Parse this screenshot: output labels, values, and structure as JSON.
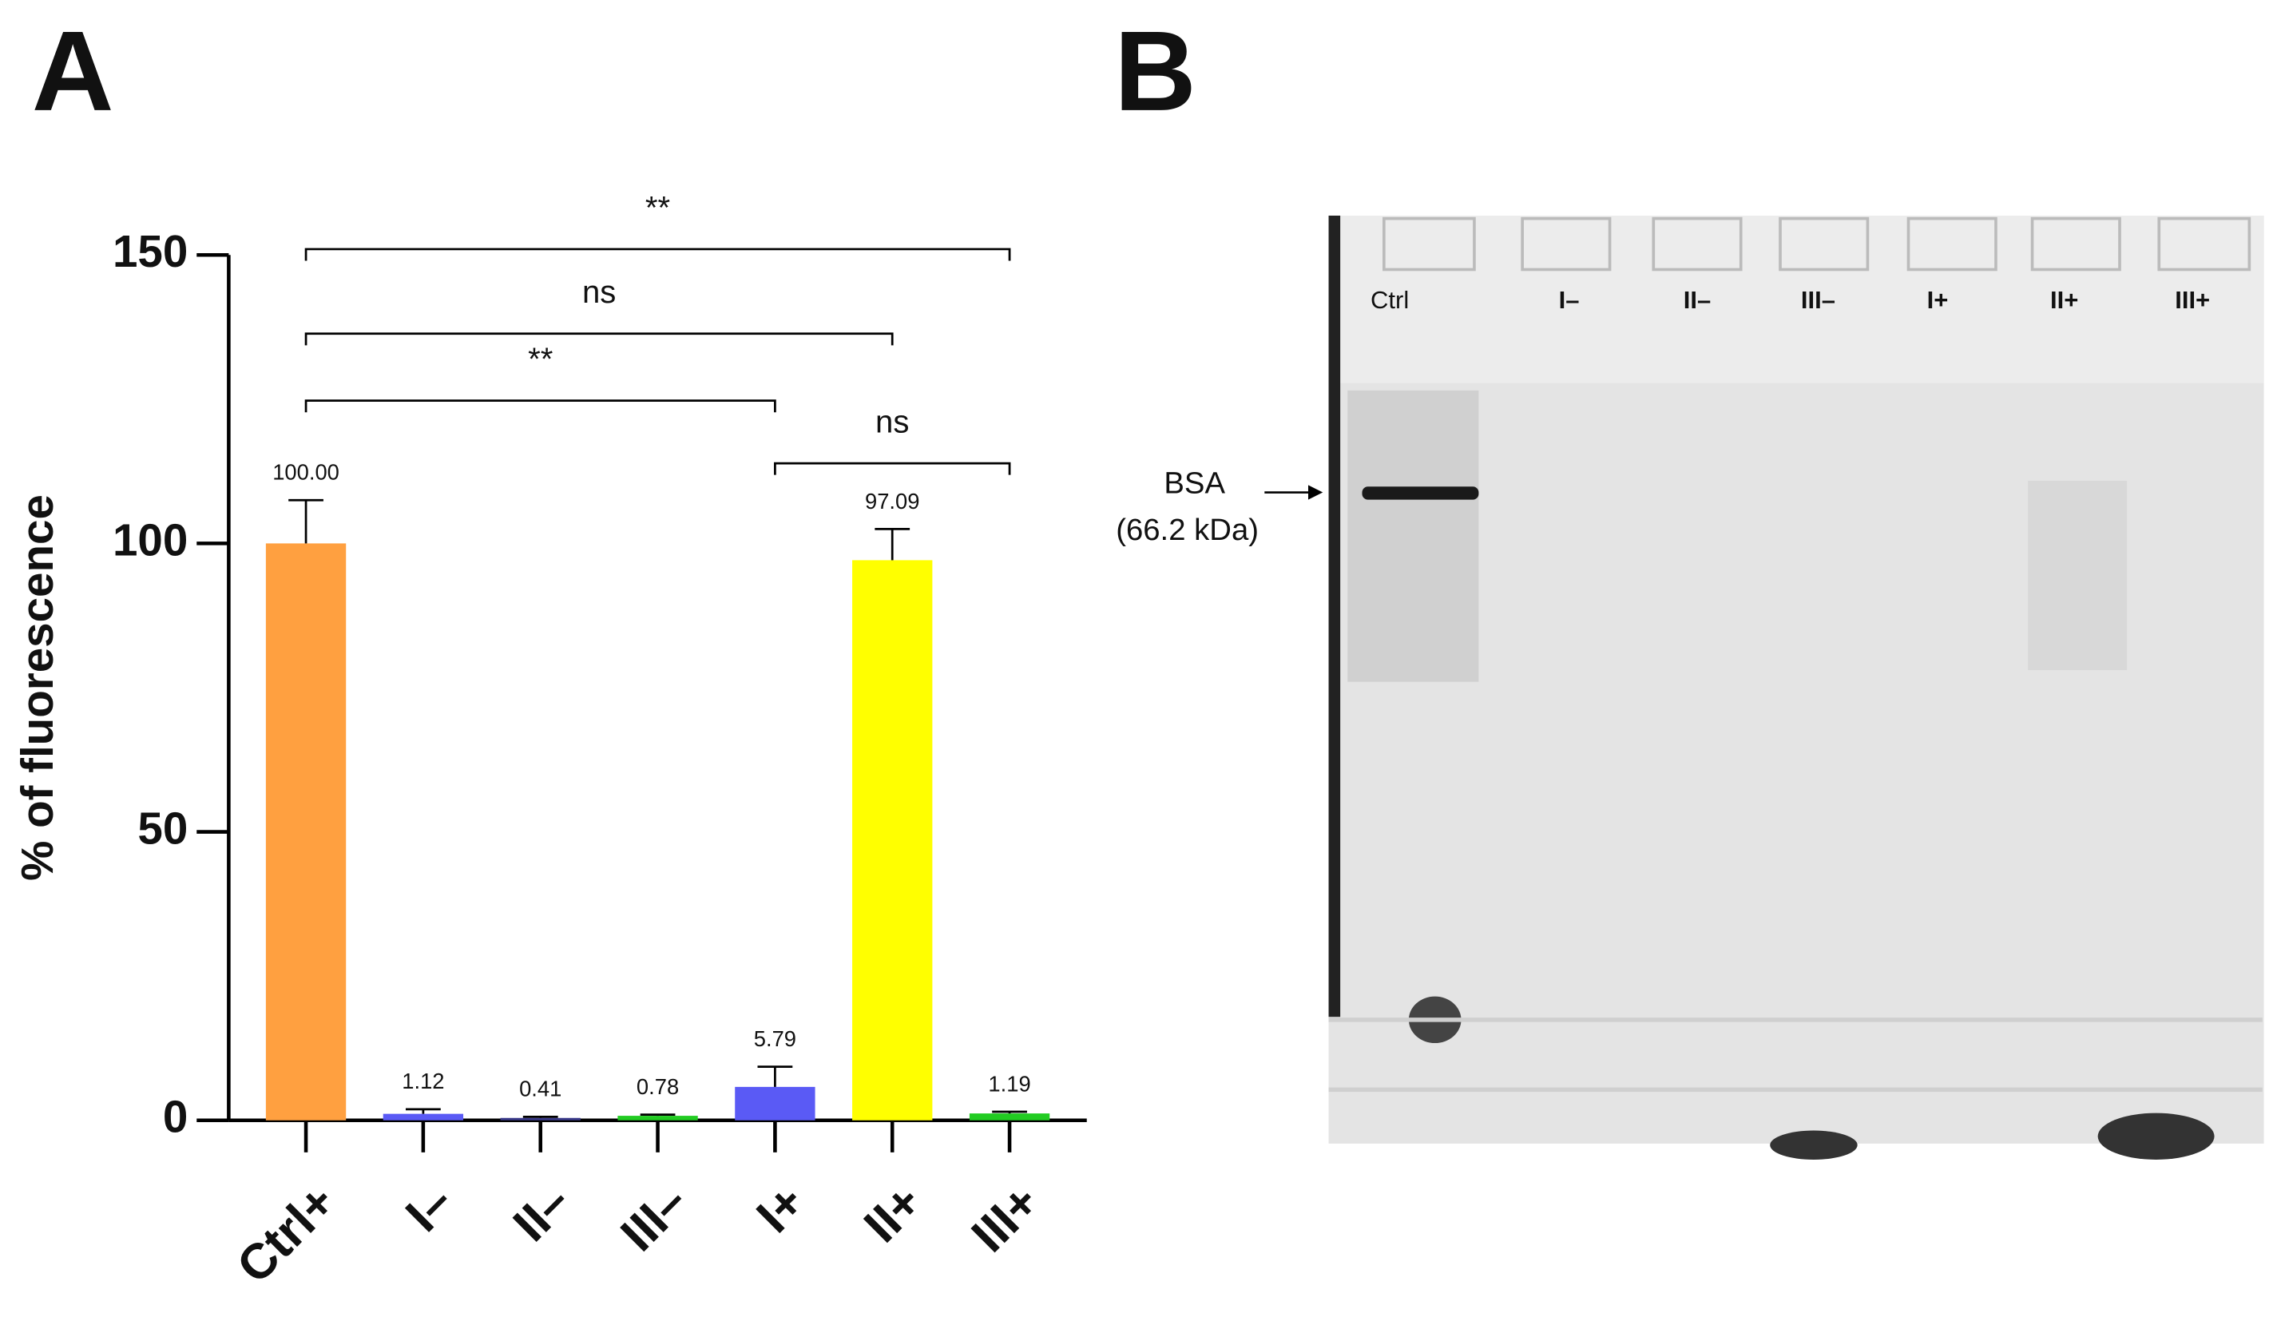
{
  "panels": [
    "A",
    "B"
  ],
  "chart_data": {
    "type": "bar",
    "y_label": "% of fluorescence",
    "categories": [
      "Ctrl+",
      "I–",
      "II–",
      "III–",
      "I+",
      "II+",
      "III+"
    ],
    "values": [
      100.0,
      1.12,
      0.41,
      0.78,
      5.79,
      97.09,
      1.19
    ],
    "value_labels": [
      "100.00",
      "1.12",
      "0.41",
      "0.78",
      "5.79",
      "97.09",
      "1.19"
    ],
    "errors": [
      7.5,
      0.8,
      0.2,
      0.2,
      3.5,
      5.4,
      0.3
    ],
    "colors": [
      "#ffa040",
      "#5a5af5",
      "#3a3a8a",
      "#22cc22",
      "#5a5af5",
      "#ffff00",
      "#22cc22"
    ],
    "ylim": [
      0,
      150
    ],
    "yticks": [
      0,
      50,
      100,
      150
    ],
    "comparisons": [
      {
        "from": "Ctrl+",
        "to": "III+",
        "label": "**"
      },
      {
        "from": "Ctrl+",
        "to": "II+",
        "label": "ns"
      },
      {
        "from": "Ctrl+",
        "to": "I+",
        "label": "**"
      },
      {
        "from": "I+",
        "to": "III+",
        "label": "ns"
      }
    ]
  },
  "gel": {
    "lanes": [
      "Ctrl",
      "I–",
      "II–",
      "III–",
      "I+",
      "II+",
      "III+"
    ],
    "marker": "BSA",
    "marker_size": "(66.2 kDa)"
  }
}
